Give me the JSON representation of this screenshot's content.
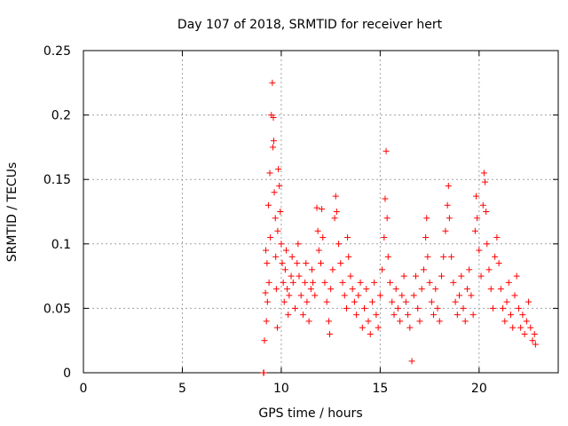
{
  "chart_data": {
    "type": "scatter",
    "title": "Day 107 of 2018, SRMTID for receiver hert",
    "xlabel": "GPS time / hours",
    "ylabel": "SRMTID / TECUs",
    "xlim": [
      0,
      24
    ],
    "ylim": [
      0,
      0.25
    ],
    "xticks": [
      0,
      5,
      10,
      15,
      20
    ],
    "xtick_labels": [
      "0",
      "5",
      "10",
      "15",
      "20"
    ],
    "yticks": [
      0,
      0.05,
      0.1,
      0.15,
      0.2,
      0.25
    ],
    "ytick_labels": [
      "0",
      "0.05",
      "0.1",
      "0.15",
      "0.2",
      "0.25"
    ],
    "grid": true,
    "marker": "+",
    "color": "#ff0000",
    "series": [
      {
        "name": "SRMTID",
        "points": [
          [
            9.1,
            0.0
          ],
          [
            9.12,
            0.0
          ],
          [
            9.15,
            0.025
          ],
          [
            9.2,
            0.062
          ],
          [
            9.22,
            0.095
          ],
          [
            9.25,
            0.04
          ],
          [
            9.28,
            0.085
          ],
          [
            9.3,
            0.055
          ],
          [
            9.35,
            0.13
          ],
          [
            9.38,
            0.07
          ],
          [
            9.42,
            0.155
          ],
          [
            9.45,
            0.105
          ],
          [
            9.5,
            0.2
          ],
          [
            9.55,
            0.225
          ],
          [
            9.58,
            0.175
          ],
          [
            9.6,
            0.198
          ],
          [
            9.62,
            0.18
          ],
          [
            9.65,
            0.14
          ],
          [
            9.7,
            0.12
          ],
          [
            9.72,
            0.09
          ],
          [
            9.75,
            0.065
          ],
          [
            9.8,
            0.035
          ],
          [
            9.82,
            0.11
          ],
          [
            9.85,
            0.158
          ],
          [
            9.9,
            0.145
          ],
          [
            9.95,
            0.125
          ],
          [
            10.0,
            0.1
          ],
          [
            10.05,
            0.085
          ],
          [
            10.1,
            0.07
          ],
          [
            10.15,
            0.055
          ],
          [
            10.2,
            0.08
          ],
          [
            10.25,
            0.095
          ],
          [
            10.3,
            0.065
          ],
          [
            10.35,
            0.045
          ],
          [
            10.4,
            0.06
          ],
          [
            10.5,
            0.075
          ],
          [
            10.55,
            0.09
          ],
          [
            10.6,
            0.07
          ],
          [
            10.7,
            0.05
          ],
          [
            10.8,
            0.085
          ],
          [
            10.85,
            0.1
          ],
          [
            10.9,
            0.075
          ],
          [
            11.0,
            0.06
          ],
          [
            11.1,
            0.045
          ],
          [
            11.2,
            0.07
          ],
          [
            11.25,
            0.085
          ],
          [
            11.3,
            0.055
          ],
          [
            11.4,
            0.04
          ],
          [
            11.5,
            0.065
          ],
          [
            11.55,
            0.08
          ],
          [
            11.6,
            0.07
          ],
          [
            11.7,
            0.06
          ],
          [
            11.8,
            0.128
          ],
          [
            11.85,
            0.11
          ],
          [
            11.9,
            0.095
          ],
          [
            12.0,
            0.085
          ],
          [
            12.05,
            0.127
          ],
          [
            12.1,
            0.105
          ],
          [
            12.2,
            0.07
          ],
          [
            12.3,
            0.055
          ],
          [
            12.4,
            0.04
          ],
          [
            12.45,
            0.03
          ],
          [
            12.5,
            0.065
          ],
          [
            12.6,
            0.08
          ],
          [
            12.7,
            0.12
          ],
          [
            12.75,
            0.137
          ],
          [
            12.8,
            0.125
          ],
          [
            12.9,
            0.1
          ],
          [
            13.0,
            0.085
          ],
          [
            13.1,
            0.07
          ],
          [
            13.2,
            0.06
          ],
          [
            13.3,
            0.05
          ],
          [
            13.35,
            0.105
          ],
          [
            13.4,
            0.09
          ],
          [
            13.5,
            0.075
          ],
          [
            13.6,
            0.065
          ],
          [
            13.7,
            0.055
          ],
          [
            13.8,
            0.045
          ],
          [
            13.9,
            0.06
          ],
          [
            14.0,
            0.07
          ],
          [
            14.1,
            0.035
          ],
          [
            14.2,
            0.05
          ],
          [
            14.3,
            0.065
          ],
          [
            14.4,
            0.04
          ],
          [
            14.5,
            0.03
          ],
          [
            14.6,
            0.055
          ],
          [
            14.7,
            0.07
          ],
          [
            14.8,
            0.045
          ],
          [
            14.9,
            0.035
          ],
          [
            15.0,
            0.06
          ],
          [
            15.1,
            0.08
          ],
          [
            15.2,
            0.105
          ],
          [
            15.25,
            0.135
          ],
          [
            15.3,
            0.172
          ],
          [
            15.35,
            0.12
          ],
          [
            15.4,
            0.09
          ],
          [
            15.5,
            0.07
          ],
          [
            15.6,
            0.055
          ],
          [
            15.7,
            0.045
          ],
          [
            15.8,
            0.065
          ],
          [
            15.9,
            0.05
          ],
          [
            16.0,
            0.04
          ],
          [
            16.1,
            0.06
          ],
          [
            16.2,
            0.075
          ],
          [
            16.3,
            0.055
          ],
          [
            16.4,
            0.045
          ],
          [
            16.5,
            0.035
          ],
          [
            16.6,
            0.009
          ],
          [
            16.7,
            0.06
          ],
          [
            16.8,
            0.075
          ],
          [
            16.9,
            0.05
          ],
          [
            17.0,
            0.04
          ],
          [
            17.1,
            0.065
          ],
          [
            17.2,
            0.08
          ],
          [
            17.3,
            0.105
          ],
          [
            17.35,
            0.12
          ],
          [
            17.4,
            0.09
          ],
          [
            17.5,
            0.07
          ],
          [
            17.6,
            0.055
          ],
          [
            17.7,
            0.045
          ],
          [
            17.8,
            0.065
          ],
          [
            17.9,
            0.05
          ],
          [
            18.0,
            0.04
          ],
          [
            18.1,
            0.075
          ],
          [
            18.2,
            0.09
          ],
          [
            18.3,
            0.11
          ],
          [
            18.4,
            0.13
          ],
          [
            18.45,
            0.145
          ],
          [
            18.5,
            0.12
          ],
          [
            18.6,
            0.09
          ],
          [
            18.7,
            0.07
          ],
          [
            18.8,
            0.055
          ],
          [
            18.9,
            0.045
          ],
          [
            19.0,
            0.06
          ],
          [
            19.1,
            0.075
          ],
          [
            19.2,
            0.05
          ],
          [
            19.3,
            0.04
          ],
          [
            19.4,
            0.065
          ],
          [
            19.5,
            0.08
          ],
          [
            19.6,
            0.06
          ],
          [
            19.7,
            0.045
          ],
          [
            19.8,
            0.11
          ],
          [
            19.85,
            0.137
          ],
          [
            19.9,
            0.12
          ],
          [
            20.0,
            0.095
          ],
          [
            20.1,
            0.075
          ],
          [
            20.2,
            0.13
          ],
          [
            20.25,
            0.155
          ],
          [
            20.3,
            0.148
          ],
          [
            20.35,
            0.125
          ],
          [
            20.4,
            0.1
          ],
          [
            20.5,
            0.08
          ],
          [
            20.6,
            0.065
          ],
          [
            20.7,
            0.05
          ],
          [
            20.8,
            0.09
          ],
          [
            20.9,
            0.105
          ],
          [
            21.0,
            0.085
          ],
          [
            21.1,
            0.065
          ],
          [
            21.2,
            0.05
          ],
          [
            21.3,
            0.04
          ],
          [
            21.4,
            0.055
          ],
          [
            21.5,
            0.07
          ],
          [
            21.6,
            0.045
          ],
          [
            21.7,
            0.035
          ],
          [
            21.8,
            0.06
          ],
          [
            21.9,
            0.075
          ],
          [
            22.0,
            0.05
          ],
          [
            22.1,
            0.035
          ],
          [
            22.2,
            0.045
          ],
          [
            22.3,
            0.03
          ],
          [
            22.4,
            0.04
          ],
          [
            22.5,
            0.055
          ],
          [
            22.6,
            0.035
          ],
          [
            22.7,
            0.025
          ],
          [
            22.8,
            0.03
          ],
          [
            22.85,
            0.022
          ]
        ]
      }
    ]
  }
}
